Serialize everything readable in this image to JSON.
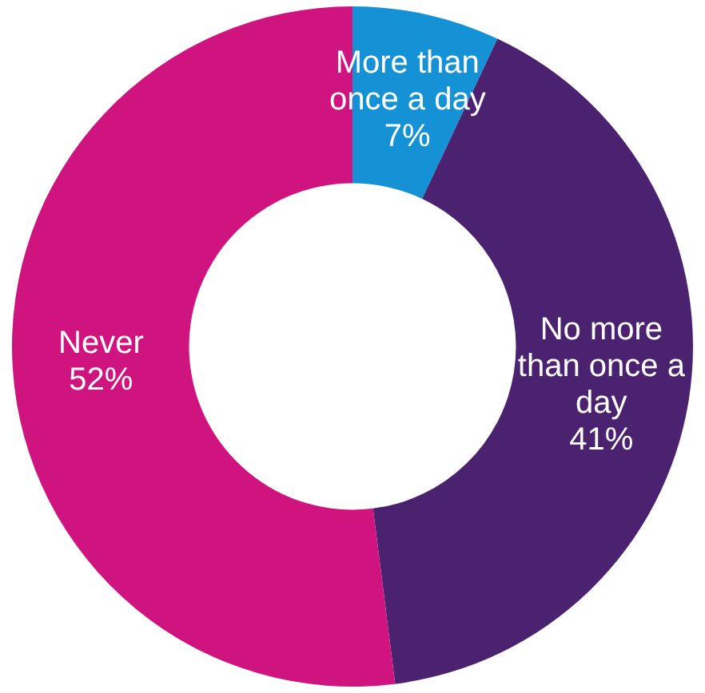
{
  "chart_data": {
    "type": "donut",
    "categories": [
      "More than once a day",
      "No more than once a day",
      "Never"
    ],
    "values": [
      7,
      41,
      52
    ],
    "value_labels": [
      "7%",
      "41%",
      "52%"
    ],
    "colors": [
      "#1592d6",
      "#4a2270",
      "#d0147f"
    ],
    "legend": false
  }
}
